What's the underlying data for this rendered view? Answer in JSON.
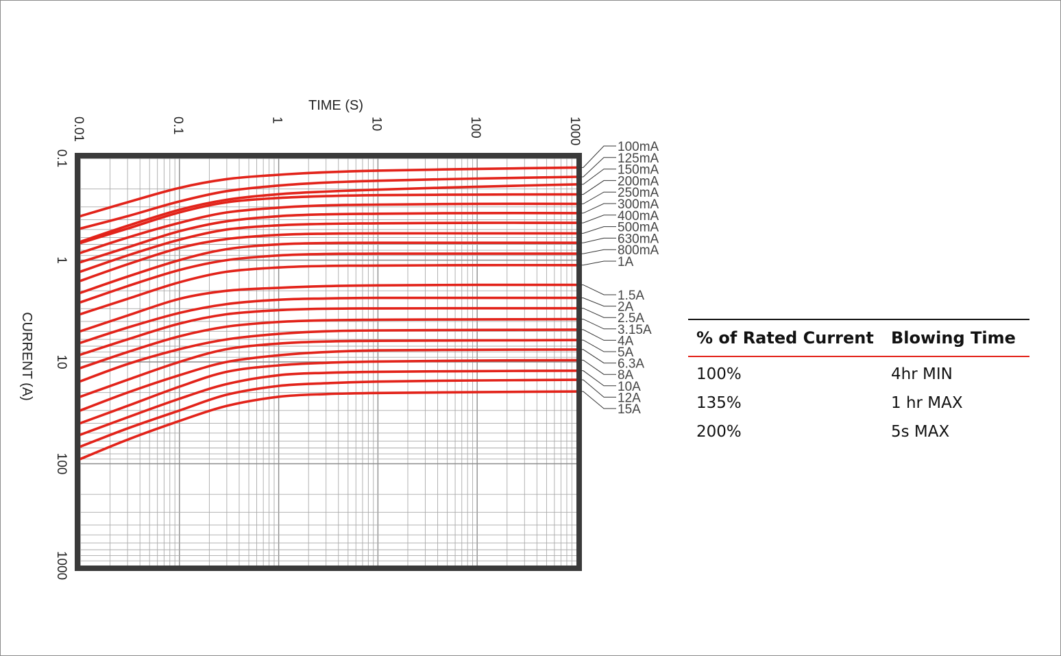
{
  "chart_data": {
    "type": "line",
    "xlabel": "TIME (S)",
    "ylabel": "CURRENT (A)",
    "x_scale": "log",
    "y_scale": "log",
    "xlim": [
      0.01,
      1000
    ],
    "ylim": [
      0.1,
      1000
    ],
    "x_ticks": [
      "0.01",
      "0.1",
      "1",
      "10",
      "100",
      "1000"
    ],
    "y_ticks": [
      "0.1",
      "1",
      "10",
      "100",
      "1000"
    ],
    "grid": true,
    "line_color": "#e2231a",
    "x": [
      0.01,
      0.03,
      0.1,
      0.3,
      1,
      3,
      10,
      100,
      1000
    ],
    "series": [
      {
        "name": "100mA",
        "values": [
          0.37,
          0.27,
          0.195,
          0.16,
          0.145,
          0.137,
          0.132,
          0.127,
          0.123
        ]
      },
      {
        "name": "125mA",
        "values": [
          0.49,
          0.37,
          0.265,
          0.21,
          0.185,
          0.173,
          0.166,
          0.158,
          0.152
        ]
      },
      {
        "name": "150mA",
        "values": [
          0.66,
          0.46,
          0.32,
          0.255,
          0.225,
          0.212,
          0.203,
          0.19,
          0.18
        ]
      },
      {
        "name": "200mA",
        "values": [
          0.68,
          0.49,
          0.34,
          0.27,
          0.245,
          0.235,
          0.23,
          0.227,
          0.226
        ]
      },
      {
        "name": "250mA",
        "values": [
          0.85,
          0.6,
          0.43,
          0.34,
          0.305,
          0.29,
          0.285,
          0.28,
          0.28
        ]
      },
      {
        "name": "300mA",
        "values": [
          1.05,
          0.75,
          0.52,
          0.415,
          0.37,
          0.355,
          0.35,
          0.345,
          0.345
        ]
      },
      {
        "name": "400mA",
        "values": [
          1.3,
          0.9,
          0.63,
          0.5,
          0.455,
          0.44,
          0.435,
          0.43,
          0.43
        ]
      },
      {
        "name": "500mA",
        "values": [
          1.6,
          1.1,
          0.76,
          0.62,
          0.565,
          0.55,
          0.545,
          0.545,
          0.545
        ]
      },
      {
        "name": "630mA",
        "values": [
          2.1,
          1.45,
          1.0,
          0.78,
          0.7,
          0.68,
          0.675,
          0.675,
          0.675
        ]
      },
      {
        "name": "800mA",
        "values": [
          2.6,
          1.8,
          1.25,
          1.0,
          0.9,
          0.87,
          0.865,
          0.865,
          0.865
        ]
      },
      {
        "name": "1A",
        "values": [
          3.4,
          2.4,
          1.65,
          1.3,
          1.18,
          1.14,
          1.13,
          1.12,
          1.12
        ]
      },
      {
        "name": "1.5A",
        "values": [
          5.0,
          3.5,
          2.4,
          2.0,
          1.87,
          1.8,
          1.77,
          1.75,
          1.75
        ]
      },
      {
        "name": "2A",
        "values": [
          6.5,
          4.6,
          3.3,
          2.7,
          2.45,
          2.38,
          2.35,
          2.35,
          2.35
        ]
      },
      {
        "name": "2.5A",
        "values": [
          8.5,
          6.0,
          4.2,
          3.4,
          3.1,
          3.0,
          2.98,
          2.97,
          2.97
        ]
      },
      {
        "name": "3.15A",
        "values": [
          11.5,
          8.0,
          5.6,
          4.5,
          4.05,
          3.9,
          3.85,
          3.82,
          3.8
        ]
      },
      {
        "name": "4A",
        "values": [
          15.5,
          10.5,
          7.5,
          6.0,
          5.3,
          5.0,
          4.9,
          4.85,
          4.82
        ]
      },
      {
        "name": "5A",
        "values": [
          22,
          15,
          10.0,
          7.5,
          6.6,
          6.3,
          6.2,
          6.15,
          6.1
        ]
      },
      {
        "name": "6.3A",
        "values": [
          30,
          20,
          13.5,
          10.0,
          8.6,
          8.0,
          7.7,
          7.6,
          7.55
        ]
      },
      {
        "name": "8A",
        "values": [
          40,
          27,
          17.5,
          12.5,
          10.8,
          10.2,
          9.9,
          9.7,
          9.6
        ]
      },
      {
        "name": "10A",
        "values": [
          52,
          35,
          23,
          16.5,
          13.5,
          12.8,
          12.5,
          12.3,
          12.2
        ]
      },
      {
        "name": "12A",
        "values": [
          68,
          45,
          30,
          21,
          17.2,
          16.2,
          15.6,
          15.2,
          15.0
        ]
      },
      {
        "name": "15A",
        "values": [
          90,
          58,
          38,
          27,
          22,
          20.7,
          20.2,
          19.8,
          19.5
        ]
      }
    ]
  },
  "table": {
    "headers": [
      "% of Rated Current",
      "Blowing Time"
    ],
    "rows": [
      [
        "100%",
        "4hr MIN"
      ],
      [
        "135%",
        "1 hr MAX"
      ],
      [
        "200%",
        "5s MAX"
      ]
    ]
  }
}
